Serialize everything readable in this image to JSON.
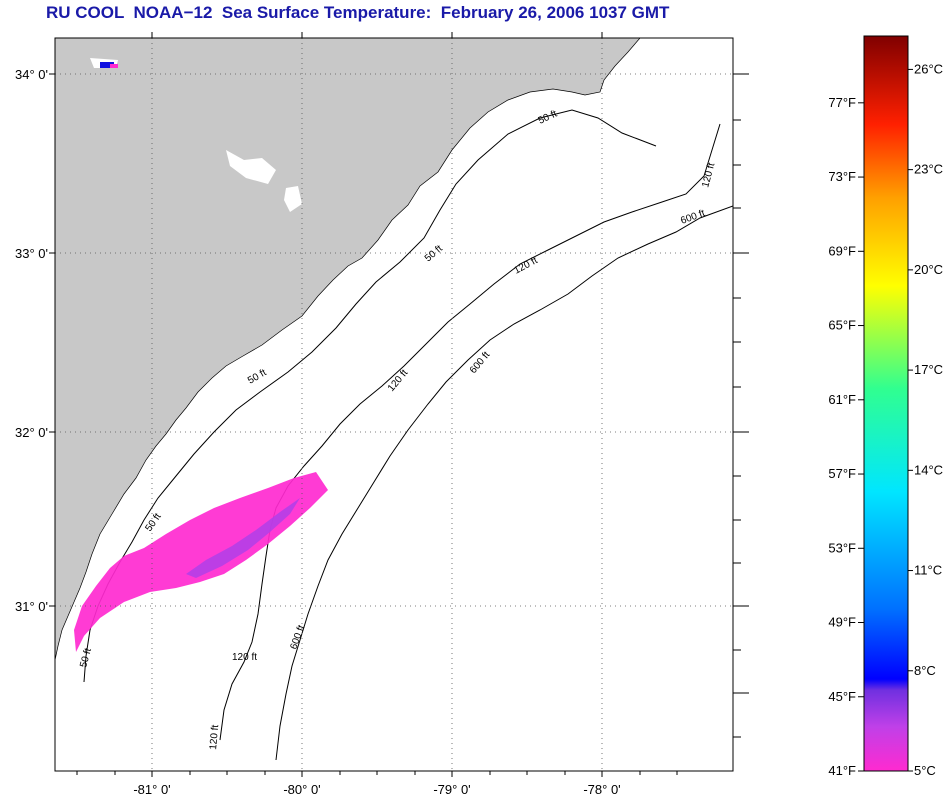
{
  "title": "RU COOL  NOAA−12  Sea Surface Temperature:  February 26, 2006 1037 GMT",
  "map": {
    "lat_labels": [
      "34° 0'",
      "33° 0'",
      "32° 0'",
      "31° 0'"
    ],
    "lon_labels": [
      "-81° 0'",
      "-80° 0'",
      "-79° 0'",
      "-78° 0'"
    ],
    "contour_labels": {
      "c50_a": "50 ft",
      "c50_b": "50 ft",
      "c50_c": "50 ft",
      "c50_d": "50 ft",
      "c50_e": "50 ft",
      "c120_a": "120 ft",
      "c120_b": "120 ft",
      "c120_c": "120 ft",
      "c120_d": "120 ft",
      "c120_e": "120 ft",
      "c600_a": "600 ft",
      "c600_b": "600 ft",
      "c600_c": "600 ft"
    },
    "land_color": "#c8c8c8",
    "ocean_color": "#ffffff"
  },
  "colorbar": {
    "fahrenheit_labels": [
      "77°F",
      "73°F",
      "69°F",
      "65°F",
      "61°F",
      "57°F",
      "53°F",
      "49°F",
      "45°F",
      "41°F"
    ],
    "celsius_labels": [
      "26°C",
      "23°C",
      "20°C",
      "17°C",
      "14°C",
      "11°C",
      "8°C",
      "5°C"
    ],
    "range_f": [
      41,
      80.6
    ],
    "range_c": [
      5,
      27
    ],
    "colors": [
      "#ff2ad0",
      "#c040e8",
      "#7030e0",
      "#0000ff",
      "#0070ff",
      "#00e6ff",
      "#30ff90",
      "#ffff00",
      "#ffa000",
      "#ff2000",
      "#800000"
    ]
  }
}
